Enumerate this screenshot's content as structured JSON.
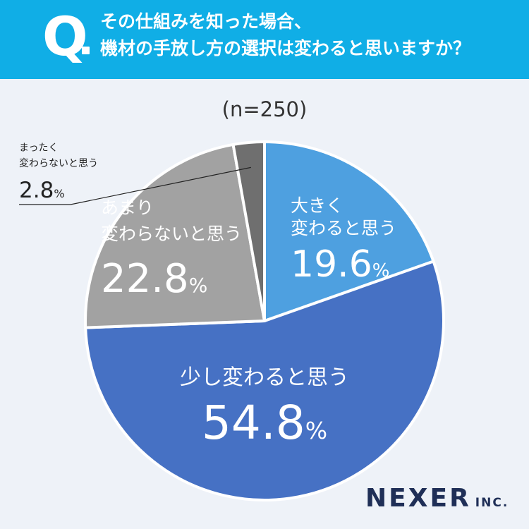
{
  "header": {
    "q_mark": "Q",
    "question_line1": "その仕組みを知った場合、",
    "question_line2": "機材の手放し方の選択は変わると思いますか？"
  },
  "chart_data": {
    "type": "pie",
    "sample_size": "(n=250)",
    "unit": "%",
    "slices": [
      {
        "label": "大きく変わると思う",
        "label_lines": [
          "大きく",
          "変わると思う"
        ],
        "value": 19.6,
        "value_text": "19.6",
        "color": "#4ea0e0"
      },
      {
        "label": "少し変わると思う",
        "label_lines": [
          "少し変わると思う"
        ],
        "value": 54.8,
        "value_text": "54.8",
        "color": "#4671c4"
      },
      {
        "label": "あまり変わらないと思う",
        "label_lines": [
          "あまり",
          "変わらないと思う"
        ],
        "value": 22.8,
        "value_text": "22.8",
        "color": "#a2a2a2"
      },
      {
        "label": "まったく変わらないと思う",
        "label_lines": [
          "まったく",
          "変わらないと思う"
        ],
        "value": 2.8,
        "value_text": "2.8",
        "color": "#6f6f6f"
      }
    ]
  },
  "footer": {
    "logo_main": "NEXER",
    "logo_inc": "INC."
  }
}
